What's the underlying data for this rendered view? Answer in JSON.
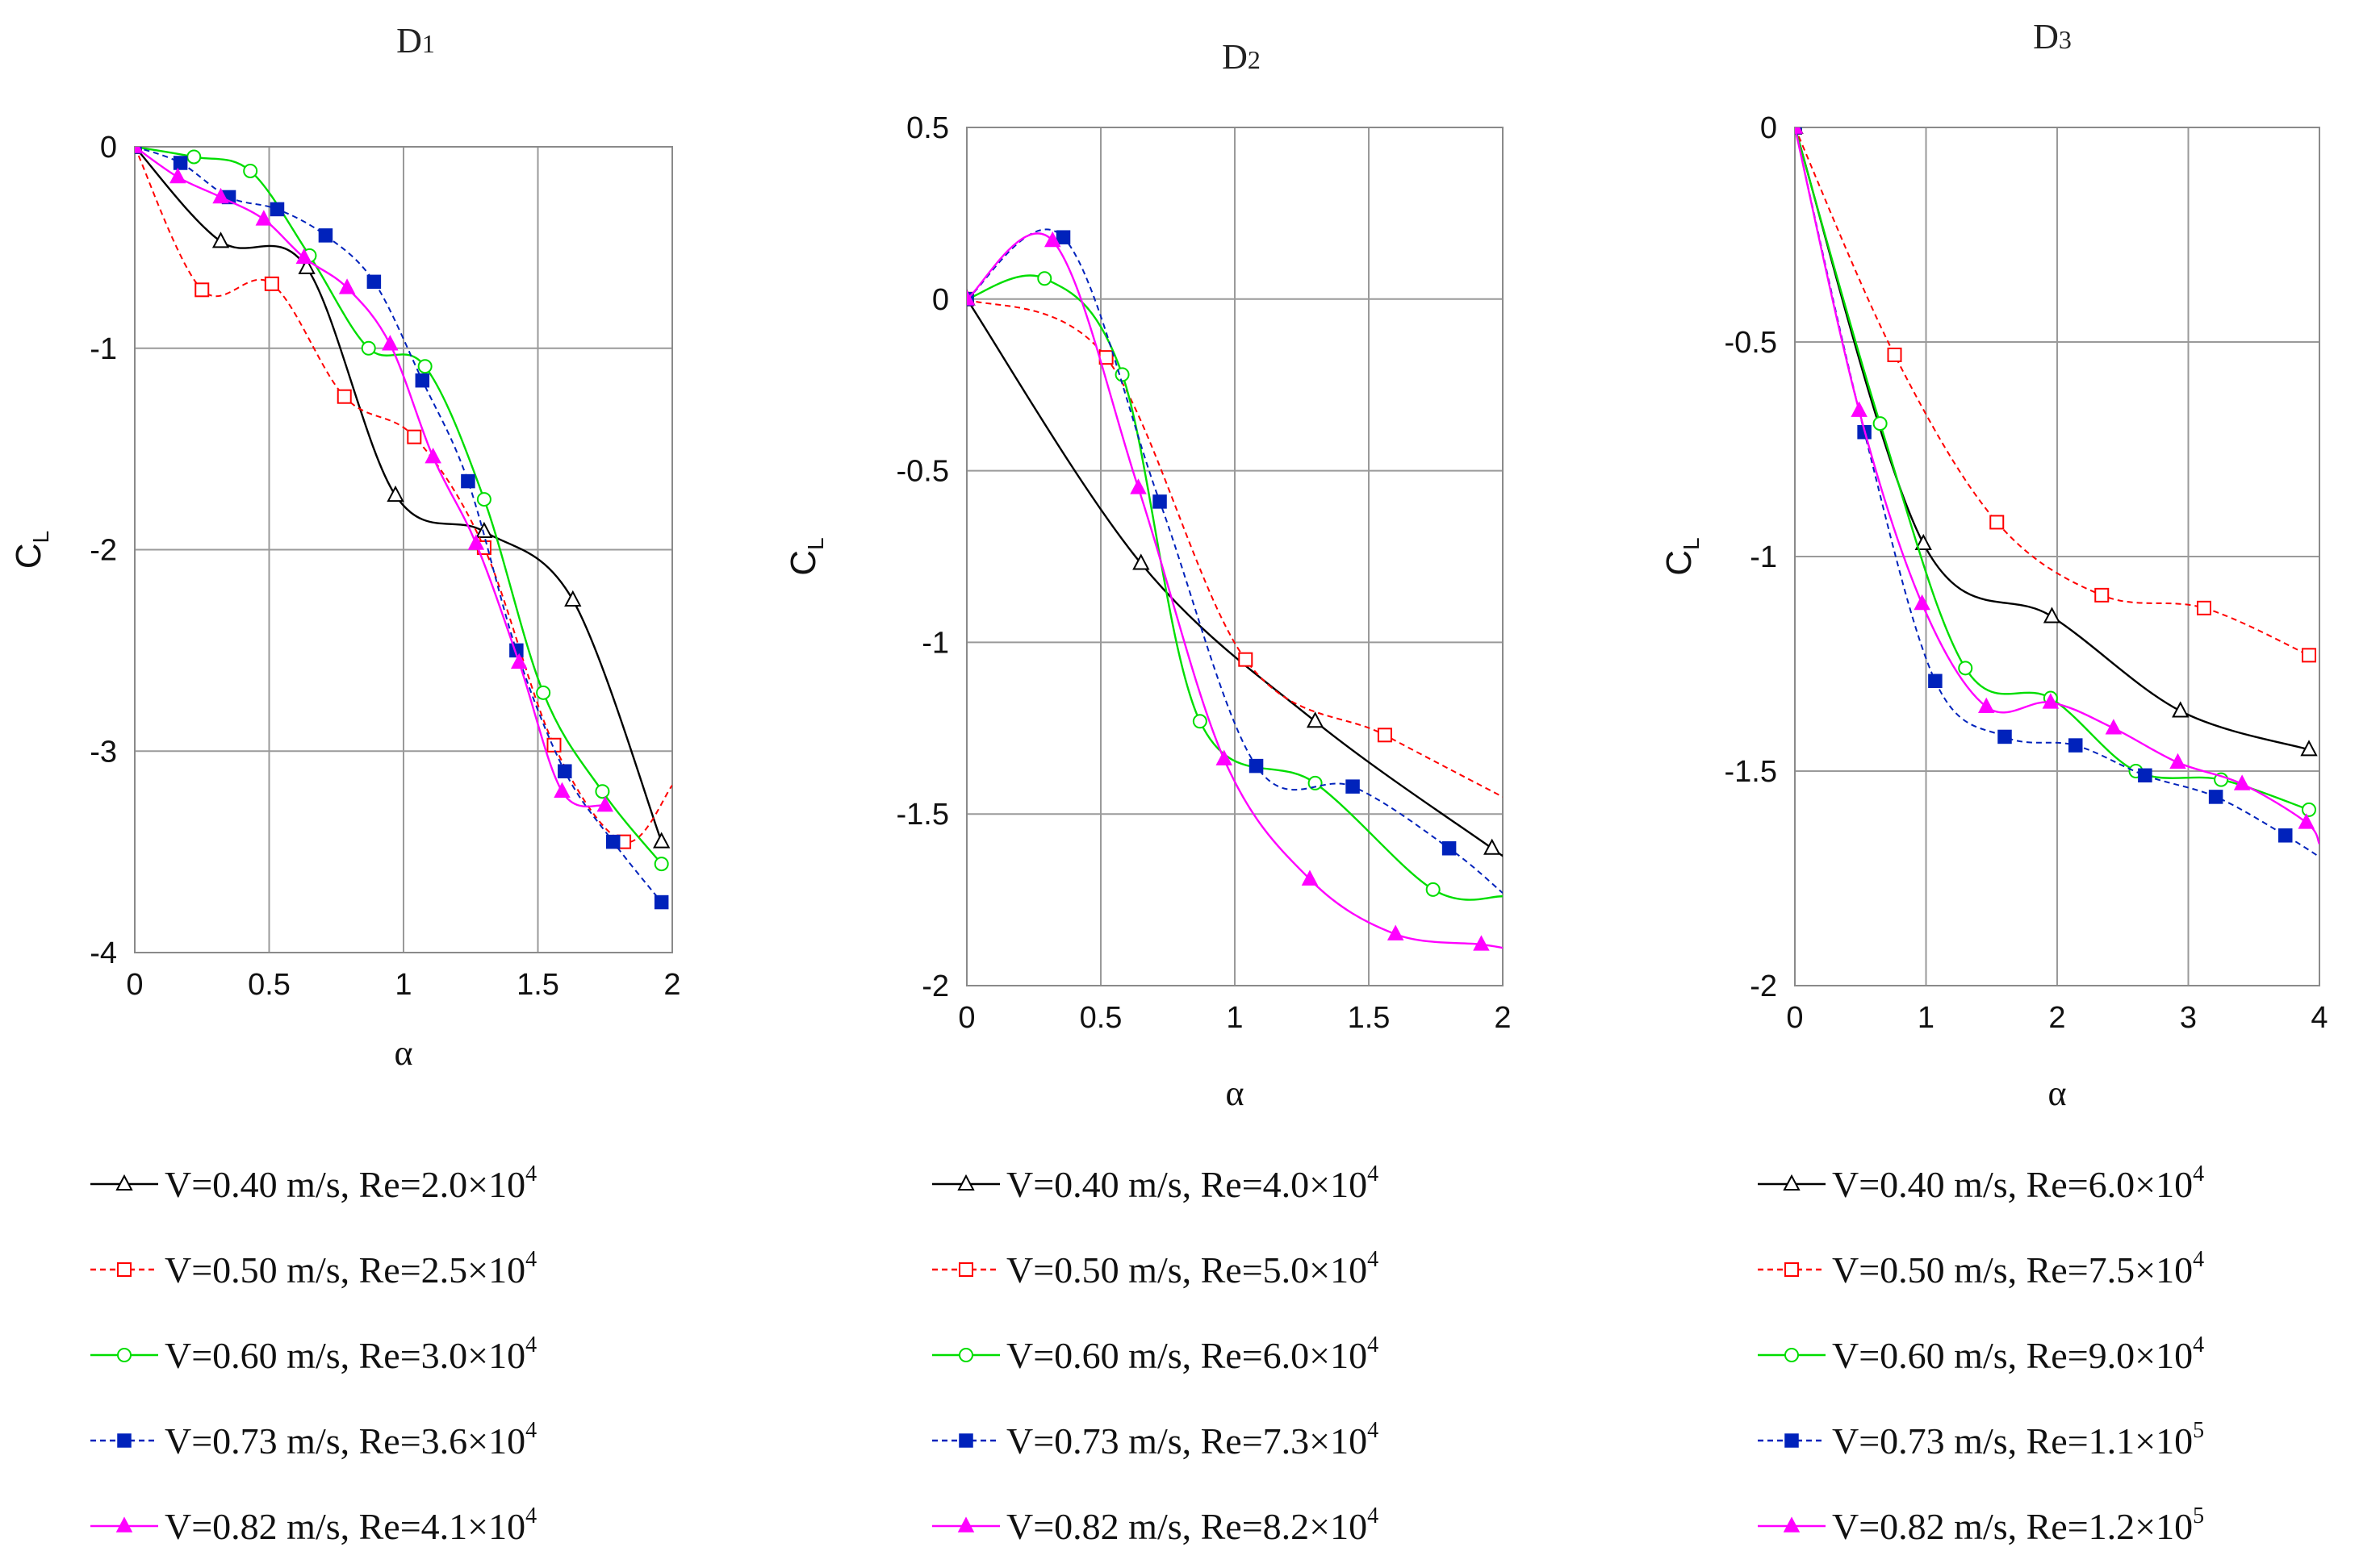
{
  "chart_data": [
    {
      "type": "line",
      "title": "D",
      "title_sub": "1",
      "xlabel": "α",
      "ylabel": "C",
      "ylabel_sub": "L",
      "xlim": [
        0,
        2
      ],
      "ylim": [
        -4,
        0
      ],
      "xticks": [
        "0",
        "0.5",
        "1",
        "1.5",
        "2"
      ],
      "yticks": [
        "0",
        "-1",
        "-2",
        "-3",
        "-4"
      ],
      "series": [
        {
          "name": "V=0.40 m/s, Re=2.0×10",
          "exp": "4",
          "x": [
            0,
            0.32,
            0.64,
            0.97,
            1.3,
            1.63,
            1.96
          ],
          "y": [
            0,
            -0.47,
            -0.6,
            -1.73,
            -1.91,
            -2.25,
            -3.45
          ]
        },
        {
          "name": "V=0.50 m/s, Re=2.5×10",
          "exp": "4",
          "x": [
            0,
            0.25,
            0.51,
            0.78,
            1.04,
            1.3,
            1.56,
            1.82,
            2.0
          ],
          "y": [
            0,
            -0.71,
            -0.68,
            -1.24,
            -1.44,
            -1.99,
            -2.97,
            -3.45,
            -3.17
          ]
        },
        {
          "name": "V=0.60 m/s, Re=3.0×10",
          "exp": "4",
          "x": [
            0,
            0.22,
            0.43,
            0.65,
            0.87,
            1.08,
            1.3,
            1.52,
            1.74,
            1.96
          ],
          "y": [
            0,
            -0.05,
            -0.12,
            -0.54,
            -1.0,
            -1.09,
            -1.75,
            -2.71,
            -3.2,
            -3.56
          ]
        },
        {
          "name": "V=0.73 m/s, Re=3.6×10",
          "exp": "4",
          "x": [
            0,
            0.17,
            0.35,
            0.53,
            0.71,
            0.89,
            1.07,
            1.24,
            1.42,
            1.6,
            1.78,
            1.96
          ],
          "y": [
            0,
            -0.08,
            -0.25,
            -0.31,
            -0.44,
            -0.67,
            -1.16,
            -1.66,
            -2.5,
            -3.1,
            -3.45,
            -3.75
          ]
        },
        {
          "name": "V=0.82 m/s, Re=4.1×10",
          "exp": "4",
          "x": [
            0,
            0.16,
            0.32,
            0.48,
            0.63,
            0.79,
            0.95,
            1.11,
            1.27,
            1.43,
            1.59,
            1.75
          ],
          "y": [
            0,
            -0.15,
            -0.25,
            -0.36,
            -0.55,
            -0.7,
            -0.98,
            -1.54,
            -1.97,
            -2.56,
            -3.2,
            -3.27
          ]
        }
      ]
    },
    {
      "type": "line",
      "title": "D",
      "title_sub": "2",
      "xlabel": "α",
      "ylabel": "C",
      "ylabel_sub": "L",
      "xlim": [
        0,
        2
      ],
      "ylim": [
        -2,
        0.5
      ],
      "xticks": [
        "0",
        "0.5",
        "1",
        "1.5",
        "2"
      ],
      "yticks": [
        "0.5",
        "0",
        "-0.5",
        "-1",
        "-1.5",
        "-2"
      ],
      "series": [
        {
          "name": "V=0.40 m/s, Re=4.0×10",
          "exp": "4",
          "x": [
            0,
            0.65,
            1.3,
            1.96,
            2.0
          ],
          "y": [
            0,
            -0.77,
            -1.23,
            -1.6,
            -1.62
          ]
        },
        {
          "name": "V=0.50 m/s, Re=5.0×10",
          "exp": "4",
          "x": [
            0,
            0.52,
            1.04,
            1.56,
            2.0
          ],
          "y": [
            0,
            -0.17,
            -1.05,
            -1.27,
            -1.45
          ]
        },
        {
          "name": "V=0.60 m/s, Re=6.0×10",
          "exp": "4",
          "x": [
            0,
            0.29,
            0.58,
            0.87,
            1.3,
            1.74,
            2.0
          ],
          "y": [
            0,
            0.06,
            -0.22,
            -1.23,
            -1.41,
            -1.72,
            -1.74
          ]
        },
        {
          "name": "V=0.73 m/s, Re=7.3×10",
          "exp": "4",
          "x": [
            0,
            0.36,
            0.72,
            1.08,
            1.44,
            1.8,
            2.0
          ],
          "y": [
            0,
            0.18,
            -0.59,
            -1.36,
            -1.42,
            -1.6,
            -1.73
          ]
        },
        {
          "name": "V=0.82 m/s, Re=8.2×10",
          "exp": "4",
          "x": [
            0,
            0.32,
            0.64,
            0.96,
            1.28,
            1.6,
            1.92,
            2.0
          ],
          "y": [
            0,
            0.17,
            -0.55,
            -1.34,
            -1.69,
            -1.85,
            -1.88,
            -1.89
          ]
        }
      ]
    },
    {
      "type": "line",
      "title": "D",
      "title_sub": "3",
      "xlabel": "α",
      "ylabel": "C",
      "ylabel_sub": "L",
      "xlim": [
        0,
        4
      ],
      "ylim": [
        -2,
        0
      ],
      "xticks": [
        "0",
        "1",
        "2",
        "3",
        "4"
      ],
      "yticks": [
        "0",
        "-0.5",
        "-1",
        "-1.5",
        "-2"
      ],
      "series": [
        {
          "name": "V=0.40 m/s, Re=6.0×10",
          "exp": "4",
          "x": [
            0,
            0.98,
            1.96,
            2.94,
            3.92
          ],
          "y": [
            0,
            -0.97,
            -1.14,
            -1.36,
            -1.45
          ]
        },
        {
          "name": "V=0.50 m/s, Re=7.5×10",
          "exp": "4",
          "x": [
            0,
            0.76,
            1.54,
            2.34,
            3.12,
            3.92
          ],
          "y": [
            0,
            -0.53,
            -0.92,
            -1.09,
            -1.12,
            -1.23
          ]
        },
        {
          "name": "V=0.60 m/s, Re=9.0×10",
          "exp": "4",
          "x": [
            0,
            0.65,
            1.3,
            1.95,
            2.6,
            3.25,
            3.92
          ],
          "y": [
            0,
            -0.69,
            -1.26,
            -1.33,
            -1.5,
            -1.52,
            -1.59
          ]
        },
        {
          "name": "V=0.73 m/s, Re=1.1×10",
          "exp": "5",
          "x": [
            0,
            0.53,
            1.07,
            1.6,
            2.14,
            2.67,
            3.21,
            3.74,
            4.0
          ],
          "y": [
            0,
            -0.71,
            -1.29,
            -1.42,
            -1.44,
            -1.51,
            -1.56,
            -1.65,
            -1.7
          ]
        },
        {
          "name": "V=0.82 m/s, Re=1.2×10",
          "exp": "5",
          "x": [
            0,
            0.49,
            0.97,
            1.46,
            1.95,
            2.43,
            2.92,
            3.41,
            3.9,
            4.0
          ],
          "y": [
            0,
            -0.66,
            -1.11,
            -1.35,
            -1.34,
            -1.4,
            -1.48,
            -1.53,
            -1.62,
            -1.67
          ]
        }
      ]
    }
  ],
  "series_styles": [
    {
      "color": "#000000",
      "marker": "triangle-open",
      "dash": ""
    },
    {
      "color": "#ff0000",
      "marker": "square-open",
      "dash": "7 5"
    },
    {
      "color": "#00dd00",
      "marker": "circle-open",
      "dash": ""
    },
    {
      "color": "#0022bb",
      "marker": "square-filled",
      "dash": "7 5"
    },
    {
      "color": "#ff00ff",
      "marker": "triangle-filled",
      "dash": ""
    }
  ]
}
